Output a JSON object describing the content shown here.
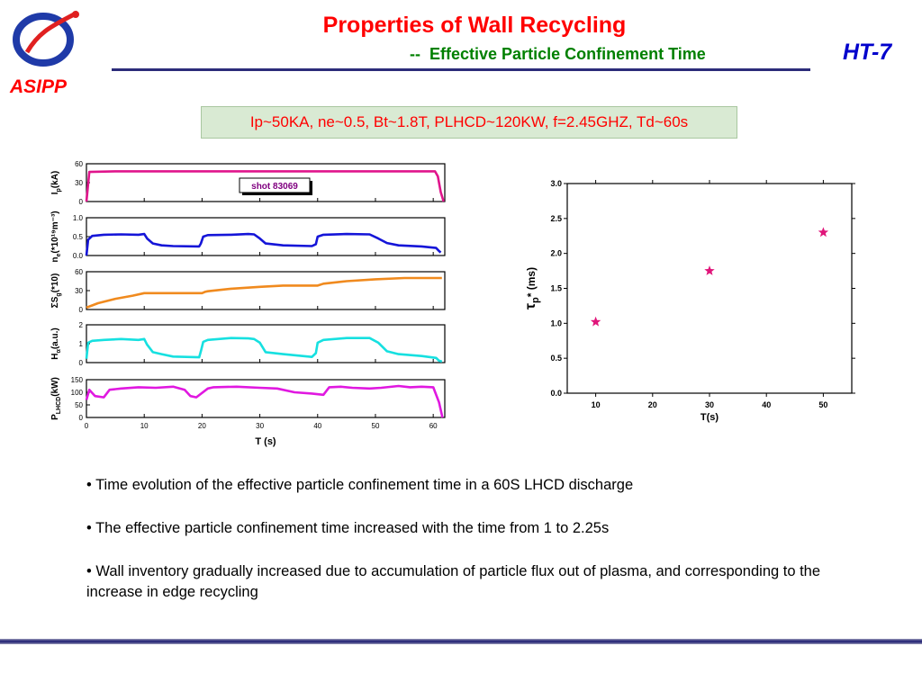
{
  "slide": {
    "title": "Properties of Wall Recycling",
    "subtitle_dash": "--",
    "subtitle": "Effective Particle Confinement Time",
    "tag": "HT-7",
    "logo_text": "ASIPP",
    "conditions": "Ip~50KA, ne~0.5, Bt~1.8T, PLHCD~120KW, f=2.45GHZ, Td~60s",
    "bullets": [
      "• Time evolution of the effective particle confinement time in a 60S LHCD discharge",
      "• The effective particle confinement time increased with the time from 1 to 2.25s",
      "•  Wall inventory gradually increased due to accumulation of particle flux out of plasma, and corresponding to the increase in edge recycling"
    ],
    "colors": {
      "title": "#ff0000",
      "subtitle": "#008000",
      "tag": "#0000cc",
      "rule": "#2c2c7a"
    }
  },
  "chart_data": [
    {
      "type": "line",
      "shot_label": "shot 83069",
      "xlabel": "T (s)",
      "xlim": [
        0,
        62
      ],
      "x_ticks": [
        "0",
        "10",
        "20",
        "30",
        "40",
        "50",
        "60"
      ],
      "panels": [
        {
          "ylabel_main": "I",
          "ylabel_sub": "p",
          "ylabel_tail": "(kA)",
          "color": "#e0158c",
          "ylim": [
            0,
            60
          ],
          "y_ticks": [
            "0",
            "30",
            "60"
          ],
          "x": [
            0,
            0.5,
            5,
            10,
            20,
            30,
            40,
            50,
            58,
            60.3,
            60.8,
            61.3,
            61.8
          ],
          "y": [
            0,
            47,
            48,
            48,
            48,
            48,
            48,
            48,
            48,
            48,
            40,
            15,
            0
          ]
        },
        {
          "ylabel_main": "n",
          "ylabel_sub": "e",
          "ylabel_tail": "(*10¹⁹m⁻³)",
          "color": "#1515d8",
          "ylim": [
            0,
            1.0
          ],
          "y_ticks": [
            "0.0",
            "0.5",
            "1.0"
          ],
          "x": [
            0,
            0.3,
            1,
            3,
            6,
            9,
            10,
            10.5,
            11.5,
            13,
            15,
            19.5,
            19.8,
            20.2,
            21,
            25,
            28,
            29,
            30,
            31,
            34,
            39,
            39.7,
            40,
            41,
            45,
            49,
            50.5,
            52,
            54,
            58,
            60.5,
            61,
            61.3
          ],
          "y": [
            0,
            0.42,
            0.52,
            0.55,
            0.56,
            0.55,
            0.57,
            0.45,
            0.32,
            0.27,
            0.25,
            0.24,
            0.32,
            0.5,
            0.54,
            0.55,
            0.57,
            0.56,
            0.45,
            0.32,
            0.27,
            0.25,
            0.3,
            0.5,
            0.55,
            0.57,
            0.56,
            0.45,
            0.33,
            0.27,
            0.24,
            0.2,
            0.12,
            0.08
          ]
        },
        {
          "ylabel_main": "ΣS",
          "ylabel_sub": "g",
          "ylabel_tail": "(*10)",
          "color": "#f08a1e",
          "ylim": [
            0,
            60
          ],
          "y_ticks": [
            "0",
            "30",
            "60"
          ],
          "x": [
            0,
            2,
            5,
            8,
            10,
            20,
            20.5,
            21,
            25,
            30,
            34,
            40,
            41,
            45,
            50,
            55,
            61.5
          ],
          "y": [
            3,
            10,
            17,
            22,
            26,
            26,
            28,
            29,
            33,
            36,
            38,
            38,
            41,
            45,
            48,
            50,
            50
          ]
        },
        {
          "ylabel_main": "H",
          "ylabel_sub": "α",
          "ylabel_tail": "(a.u.)",
          "color": "#16e0e0",
          "ylim": [
            0,
            2
          ],
          "y_ticks": [
            "0",
            "1",
            "2"
          ],
          "x": [
            0,
            0.3,
            1,
            3,
            6,
            9,
            10,
            10.5,
            11.5,
            13,
            15,
            19.5,
            19.8,
            20.2,
            21,
            25,
            28,
            29,
            30,
            31,
            34,
            39,
            39.7,
            40,
            41,
            45,
            49,
            50.5,
            52,
            54,
            58,
            60.5,
            61,
            61.5
          ],
          "y": [
            0.2,
            1.05,
            1.15,
            1.2,
            1.25,
            1.2,
            1.25,
            0.95,
            0.55,
            0.45,
            0.32,
            0.28,
            0.6,
            1.1,
            1.2,
            1.3,
            1.28,
            1.25,
            1.05,
            0.55,
            0.45,
            0.3,
            0.5,
            1.05,
            1.2,
            1.3,
            1.3,
            1.05,
            0.6,
            0.45,
            0.35,
            0.25,
            0.1,
            0.05
          ]
        },
        {
          "ylabel_main": "P",
          "ylabel_sub": "LHCD",
          "ylabel_tail": "(kW)",
          "color": "#e018e0",
          "ylim": [
            0,
            150
          ],
          "y_ticks": [
            "0",
            "50",
            "100",
            "150"
          ],
          "x": [
            0,
            0.5,
            1.5,
            3,
            4,
            6,
            9,
            12,
            15,
            17,
            18,
            19,
            21,
            22,
            26,
            30,
            33,
            36,
            39,
            41,
            42,
            44,
            46,
            49,
            51,
            54,
            56,
            58,
            60,
            61,
            61.6
          ],
          "y": [
            70,
            110,
            85,
            80,
            110,
            115,
            120,
            118,
            122,
            110,
            85,
            80,
            115,
            120,
            122,
            118,
            115,
            100,
            95,
            90,
            120,
            122,
            118,
            115,
            118,
            125,
            120,
            122,
            120,
            60,
            0
          ]
        }
      ]
    },
    {
      "type": "scatter",
      "xlabel": "T(s)",
      "ylabel_main": "τ",
      "ylabel_sub": "p",
      "ylabel_tail": "* (ms)",
      "xlim": [
        5,
        55
      ],
      "ylim": [
        0,
        3.0
      ],
      "x_ticks": [
        "10",
        "20",
        "30",
        "40",
        "50"
      ],
      "y_ticks": [
        "0.0",
        "0.5",
        "1.0",
        "1.5",
        "2.0",
        "2.5",
        "3.0"
      ],
      "marker_color": "#e0157a",
      "x": [
        10,
        30,
        50
      ],
      "y": [
        1.02,
        1.75,
        2.3
      ]
    }
  ]
}
